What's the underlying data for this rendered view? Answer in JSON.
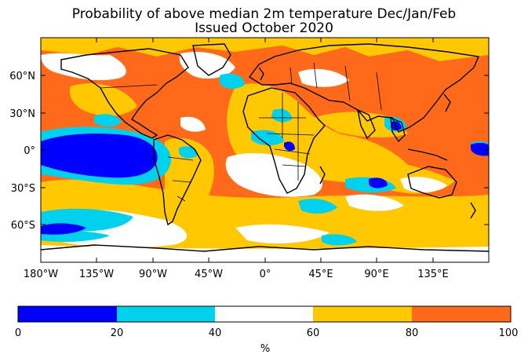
{
  "title": {
    "line1": "Probability of above median 2m temperature Dec/Jan/Feb",
    "line2": "Issued October 2020"
  },
  "map": {
    "x_tick_labels": [
      "180°W",
      "135°W",
      "90°W",
      "45°W",
      "0°",
      "45°E",
      "90°E",
      "135°E"
    ],
    "y_tick_labels": [
      "60°N",
      "30°N",
      "0°",
      "30°S",
      "60°S"
    ]
  },
  "colorbar": {
    "tick_labels": [
      "0",
      "20",
      "40",
      "60",
      "80",
      "100"
    ],
    "unit_label": "%",
    "bins": [
      {
        "range": [
          0,
          20
        ],
        "color": "#0000ff"
      },
      {
        "range": [
          20,
          40
        ],
        "color": "#00d2ee"
      },
      {
        "range": [
          40,
          60
        ],
        "color": "#ffffff"
      },
      {
        "range": [
          60,
          80
        ],
        "color": "#ffc800"
      },
      {
        "range": [
          80,
          100
        ],
        "color": "#ff6a1a"
      }
    ]
  }
}
